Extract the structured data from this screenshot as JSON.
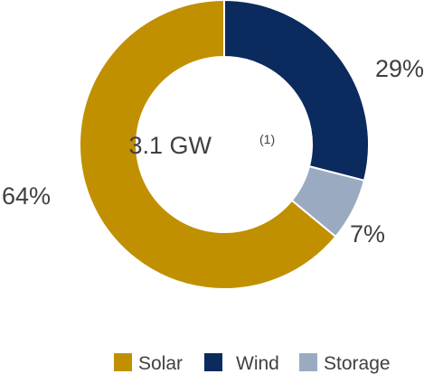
{
  "chart_data": {
    "type": "pie",
    "variant": "donut",
    "center_label": {
      "value": "3.1 GW",
      "note": "(1)"
    },
    "slices": [
      {
        "name": "Wind",
        "value": 29,
        "label": "29%",
        "color": "#0b2a5e"
      },
      {
        "name": "Storage",
        "value": 7,
        "label": "7%",
        "color": "#9aabc1"
      },
      {
        "name": "Solar",
        "value": 64,
        "label": "64%",
        "color": "#c09000"
      }
    ],
    "legend": {
      "placement": "bottom-right",
      "entries": [
        {
          "name": "Solar",
          "color": "#c09000"
        },
        {
          "name": "Wind",
          "color": "#0b2a5e"
        },
        {
          "name": "Storage",
          "color": "#9aabc1"
        }
      ]
    }
  }
}
